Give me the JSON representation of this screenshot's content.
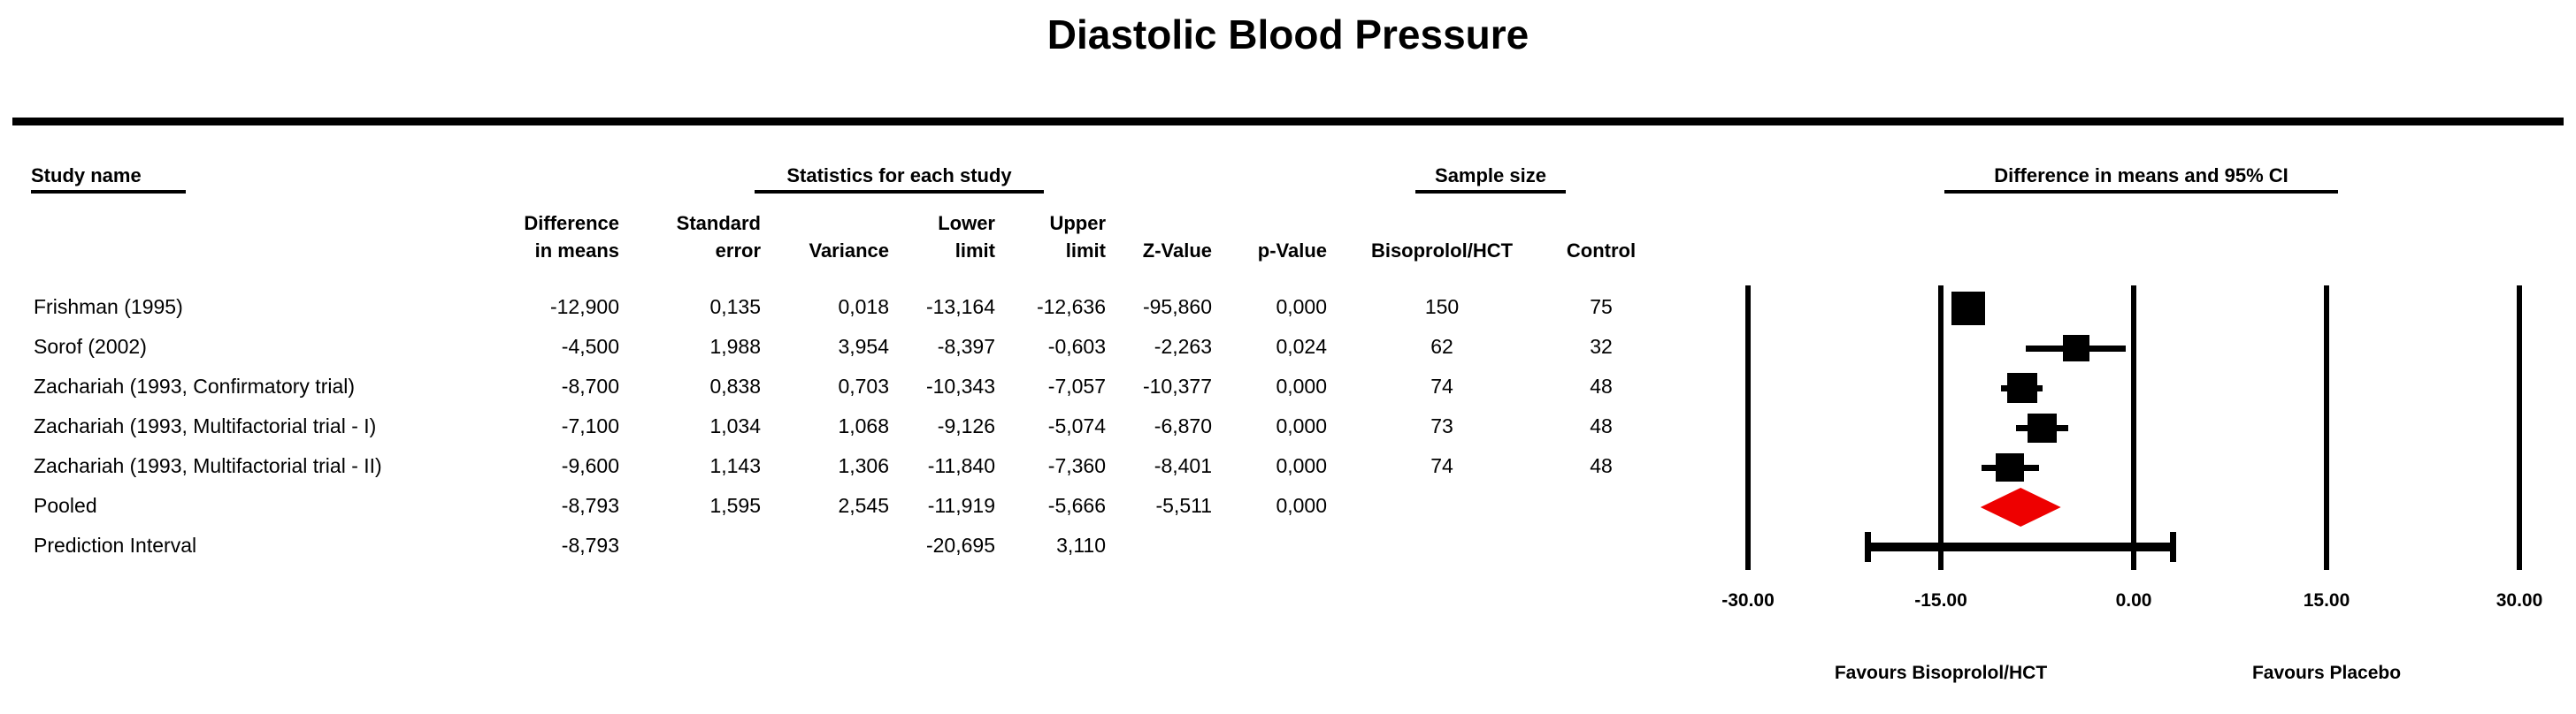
{
  "title": "Diastolic Blood Pressure",
  "sections": {
    "study": "Study name",
    "stats": "Statistics for each study",
    "sample": "Sample size",
    "ci": "Difference in means and 95% CI"
  },
  "col_headers": {
    "diff_line1": "Difference",
    "diff_line2": "in means",
    "se_line1": "Standard",
    "se_line2": "error",
    "variance": "Variance",
    "lower_line1": "Lower",
    "lower_line2": "limit",
    "upper_line1": "Upper",
    "upper_line2": "limit",
    "z": "Z-Value",
    "p": "p-Value",
    "treat": "Bisoprolol/HCT",
    "control": "Control"
  },
  "chart_data": {
    "type": "forest",
    "title": "Diastolic Blood Pressure",
    "xlabel_left": "Favours Bisoprolol/HCT",
    "xlabel_right": "Favours Placebo",
    "axis": {
      "min": -30,
      "max": 30,
      "tick_values": [
        -30,
        -15,
        0,
        15,
        30
      ],
      "ticks": [
        "-30.00",
        "-15.00",
        "0.00",
        "15.00",
        "30.00"
      ]
    },
    "rows": [
      {
        "study": "Frishman (1995)",
        "diff": "-12,900",
        "se": "0,135",
        "variance": "0,018",
        "lower": "-13,164",
        "upper": "-12,636",
        "z": "-95,860",
        "p": "0,000",
        "n_treat": "150",
        "n_control": "75",
        "value": -12.9,
        "ci_low": -13.164,
        "ci_high": -12.636,
        "marker": "square",
        "size": 38
      },
      {
        "study": "Sorof (2002)",
        "diff": "-4,500",
        "se": "1,988",
        "variance": "3,954",
        "lower": "-8,397",
        "upper": "-0,603",
        "z": "-2,263",
        "p": "0,024",
        "n_treat": "62",
        "n_control": "32",
        "value": -4.5,
        "ci_low": -8.397,
        "ci_high": -0.603,
        "marker": "square",
        "size": 30
      },
      {
        "study": "Zachariah (1993, Confirmatory trial)",
        "diff": "-8,700",
        "se": "0,838",
        "variance": "0,703",
        "lower": "-10,343",
        "upper": "-7,057",
        "z": "-10,377",
        "p": "0,000",
        "n_treat": "74",
        "n_control": "48",
        "value": -8.7,
        "ci_low": -10.343,
        "ci_high": -7.057,
        "marker": "square",
        "size": 34
      },
      {
        "study": "Zachariah (1993, Multifactorial trial - I)",
        "diff": "-7,100",
        "se": "1,034",
        "variance": "1,068",
        "lower": "-9,126",
        "upper": "-5,074",
        "z": "-6,870",
        "p": "0,000",
        "n_treat": "73",
        "n_control": "48",
        "value": -7.1,
        "ci_low": -9.126,
        "ci_high": -5.074,
        "marker": "square",
        "size": 33
      },
      {
        "study": "Zachariah (1993, Multifactorial trial - II)",
        "diff": "-9,600",
        "se": "1,143",
        "variance": "1,306",
        "lower": "-11,840",
        "upper": "-7,360",
        "z": "-8,401",
        "p": "0,000",
        "n_treat": "74",
        "n_control": "48",
        "value": -9.6,
        "ci_low": -11.84,
        "ci_high": -7.36,
        "marker": "square",
        "size": 32
      },
      {
        "study": "Pooled",
        "diff": "-8,793",
        "se": "1,595",
        "variance": "2,545",
        "lower": "-11,919",
        "upper": "-5,666",
        "z": "-5,511",
        "p": "0,000",
        "n_treat": "",
        "n_control": "",
        "value": -8.793,
        "ci_low": -11.919,
        "ci_high": -5.666,
        "marker": "diamond"
      },
      {
        "study": "Prediction Interval",
        "diff": "-8,793",
        "se": "",
        "variance": "",
        "lower": "-20,695",
        "upper": "3,110",
        "z": "",
        "p": "",
        "n_treat": "",
        "n_control": "",
        "value": -8.793,
        "ci_low": -20.695,
        "ci_high": 3.11,
        "marker": "interval"
      }
    ],
    "colors": {
      "study_marker": "#000000",
      "pooled_diamond": "#ee0000"
    },
    "legend_position": "none",
    "grid": "vertical-reference-lines"
  }
}
